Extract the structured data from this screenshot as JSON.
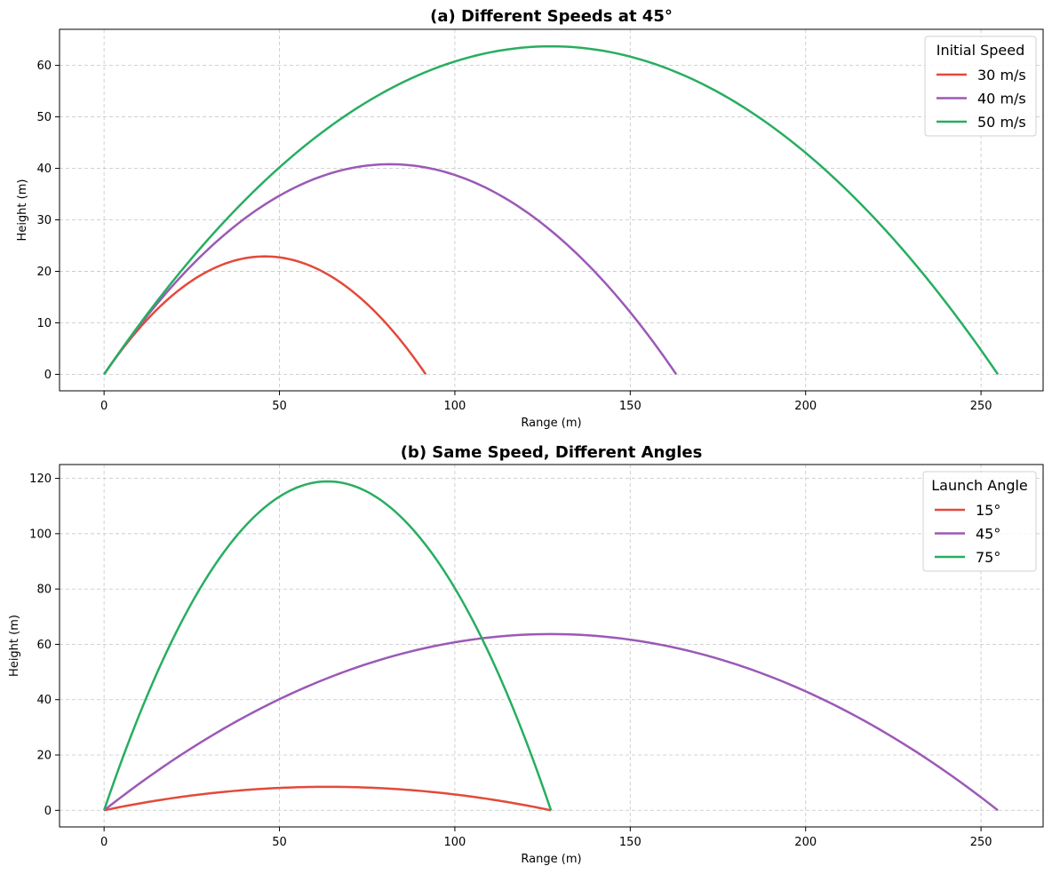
{
  "chart_data": [
    {
      "type": "line",
      "title": "(a) Different Speeds at 45°",
      "xlabel": "Range (m)",
      "ylabel": "Height (m)",
      "xlim": [
        -12.7,
        267.7
      ],
      "ylim": [
        -3.2,
        67.0
      ],
      "xticks": [
        0,
        50,
        100,
        150,
        200,
        250
      ],
      "yticks": [
        0,
        10,
        20,
        30,
        40,
        50,
        60
      ],
      "grid": true,
      "legend_title": "Initial Speed",
      "legend_position": "top-right",
      "series": [
        {
          "name": "30 m/s",
          "color": "#e24a3b",
          "range": 91.7,
          "max_height": 22.9
        },
        {
          "name": "40 m/s",
          "color": "#9b59b6",
          "range": 163.1,
          "max_height": 40.8
        },
        {
          "name": "50 m/s",
          "color": "#27ae60",
          "range": 254.8,
          "max_height": 63.7
        }
      ]
    },
    {
      "type": "line",
      "title": "(b) Same Speed, Different Angles",
      "xlabel": "Range (m)",
      "ylabel": "Height (m)",
      "xlim": [
        -12.7,
        267.7
      ],
      "ylim": [
        -6.0,
        125.0
      ],
      "xticks": [
        0,
        50,
        100,
        150,
        200,
        250
      ],
      "yticks": [
        0,
        20,
        40,
        60,
        80,
        100,
        120
      ],
      "grid": true,
      "legend_title": "Launch Angle",
      "legend_position": "top-right",
      "series": [
        {
          "name": "15°",
          "color": "#e24a3b",
          "range": 127.4,
          "max_height": 8.5
        },
        {
          "name": "45°",
          "color": "#9b59b6",
          "range": 254.8,
          "max_height": 63.7
        },
        {
          "name": "75°",
          "color": "#27ae60",
          "range": 127.4,
          "max_height": 118.9
        }
      ]
    }
  ]
}
